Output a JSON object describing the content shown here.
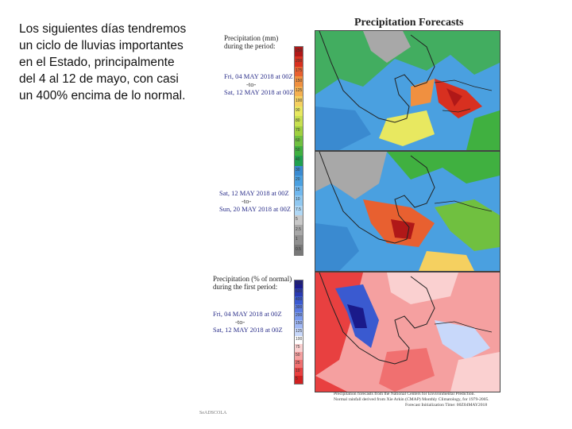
{
  "intro": {
    "line1": "Los siguientes días tendremos",
    "line2": "un ciclo de lluvias importantes",
    "line3": "en el Estado, principalmente",
    "line4": "del 4 al 12 de mayo, con casi",
    "line5": "un 400% encima de lo normal."
  },
  "figure_title": "Precipitation Forecasts",
  "panel1": {
    "head1": "Precipitation (mm)",
    "head2": "during the period:",
    "start": "Fri, 04 MAY 2018 at 00Z",
    "sep": "-to-",
    "end": "Sat, 12 MAY 2018 at 00Z"
  },
  "panel2": {
    "start": "Sat, 12 MAY 2018 at 00Z",
    "sep": "-to-",
    "end": "Sun, 20 MAY 2018 at 00Z"
  },
  "panel3": {
    "head1": "Precipitation (% of normal)",
    "head2": "during the first period:",
    "start": "Fri, 04 MAY 2018 at 00Z",
    "sep": "-to-",
    "end": "Sat, 12 MAY 2018 at 00Z"
  },
  "scale_mm": {
    "ticks": [
      "250",
      "200",
      "175",
      "150",
      "125",
      "100",
      "90",
      "80",
      "70",
      "60",
      "50",
      "40",
      "30",
      "20",
      "15",
      "10",
      "7.5",
      "5",
      "2.5",
      "1",
      "0.5"
    ],
    "colors": [
      "#b01818",
      "#d83020",
      "#e86030",
      "#f09040",
      "#f5b050",
      "#f5d060",
      "#e8e860",
      "#c8e050",
      "#a0d040",
      "#70c040",
      "#40b040",
      "#20a050",
      "#3a8ad0",
      "#4aa0e0",
      "#70b8ee",
      "#90c8f0",
      "#b0d8f5",
      "#c8c8c8",
      "#a8a8a8",
      "#909090",
      "#787878"
    ]
  },
  "scale_pct": {
    "ticks": [
      "800",
      "600",
      "400",
      "300",
      "200",
      "150",
      "125",
      "100",
      "75",
      "50",
      "25",
      "10",
      "5"
    ],
    "colors": [
      "#1a1a8a",
      "#2a3ab0",
      "#3a5ad0",
      "#5a7ae0",
      "#7a9aee",
      "#a0b8f5",
      "#c8d8fa",
      "#ffffff",
      "#fad0d0",
      "#f5a0a0",
      "#f07070",
      "#e84040",
      "#d02020"
    ]
  },
  "footer": {
    "line1": "Precipitation forecasts from the National Centers for Environmental Prediction.",
    "line2": "Normal rainfall derived from Xie Arkin (CMAP) Monthly Climatology, for 1979-2005.",
    "line3": "Forecast Initialization Time: 00Z04MAY2018"
  },
  "logo_text": "SeADSCOLA",
  "colors": {
    "text": "#111111",
    "date_blue": "#2b2f8a",
    "land_outline": "#222222"
  }
}
